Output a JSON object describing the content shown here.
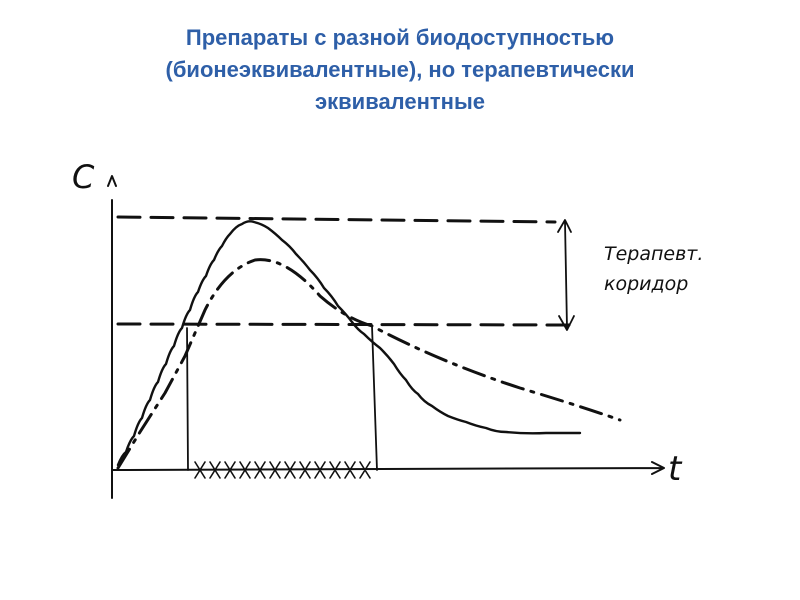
{
  "title": {
    "line1": "Препараты с разной биодоступностью",
    "line2": "(бионеэквивалентные), но терапевтически",
    "line3": "эквивалентные"
  },
  "diagram": {
    "y_axis_label": "C",
    "x_axis_label": "t",
    "corridor_label_line1": "Терапевт.",
    "corridor_label_line2": "коридор"
  },
  "colors": {
    "title": "#2e5fa8",
    "ink": "#111111"
  }
}
